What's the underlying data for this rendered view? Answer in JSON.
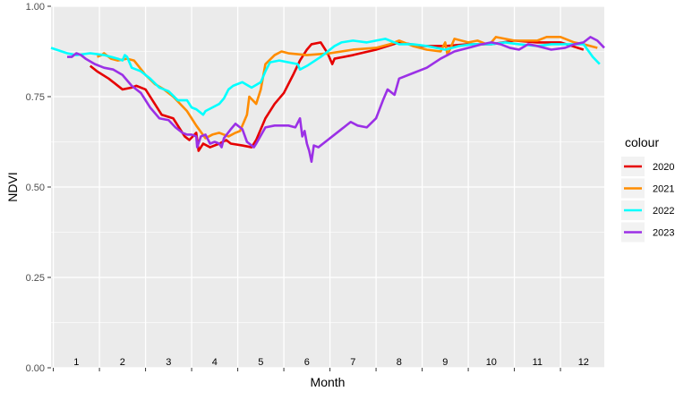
{
  "chart_data": {
    "type": "line",
    "title": "",
    "xlabel": "Month",
    "ylabel": "NDVI",
    "xlim": [
      0.45,
      12.45
    ],
    "ylim": [
      0.0,
      1.0
    ],
    "y_ticks": [
      0.0,
      0.25,
      0.5,
      0.75,
      1.0
    ],
    "y_tick_labels": [
      "0.00",
      "0.25",
      "0.50",
      "0.75",
      "1.00"
    ],
    "month_labels": [
      "1",
      "2",
      "3",
      "4",
      "5",
      "6",
      "7",
      "8",
      "9",
      "10",
      "11",
      "12"
    ],
    "grid": true,
    "legend_title": "colour",
    "legend_position": "right",
    "series": [
      {
        "name": "2020",
        "color": "#e60000",
        "points": [
          [
            1.3,
            0.835
          ],
          [
            1.45,
            0.82
          ],
          [
            1.7,
            0.8
          ],
          [
            2.0,
            0.77
          ],
          [
            2.2,
            0.775
          ],
          [
            2.3,
            0.78
          ],
          [
            2.5,
            0.77
          ],
          [
            2.7,
            0.73
          ],
          [
            2.85,
            0.7
          ],
          [
            3.1,
            0.69
          ],
          [
            3.35,
            0.64
          ],
          [
            3.45,
            0.63
          ],
          [
            3.6,
            0.65
          ],
          [
            3.65,
            0.6
          ],
          [
            3.75,
            0.62
          ],
          [
            3.9,
            0.61
          ],
          [
            4.1,
            0.62
          ],
          [
            4.25,
            0.63
          ],
          [
            4.35,
            0.62
          ],
          [
            4.6,
            0.615
          ],
          [
            4.8,
            0.61
          ],
          [
            4.9,
            0.63
          ],
          [
            5.1,
            0.69
          ],
          [
            5.3,
            0.73
          ],
          [
            5.5,
            0.76
          ],
          [
            5.7,
            0.81
          ],
          [
            5.85,
            0.85
          ],
          [
            6.0,
            0.88
          ],
          [
            6.1,
            0.895
          ],
          [
            6.3,
            0.9
          ],
          [
            6.45,
            0.87
          ],
          [
            6.55,
            0.84
          ],
          [
            6.6,
            0.855
          ],
          [
            7.0,
            0.865
          ],
          [
            7.5,
            0.88
          ],
          [
            8.0,
            0.9
          ],
          [
            8.5,
            0.89
          ],
          [
            9.0,
            0.89
          ],
          [
            9.5,
            0.895
          ],
          [
            10.0,
            0.895
          ],
          [
            10.5,
            0.905
          ],
          [
            11.0,
            0.9
          ],
          [
            11.5,
            0.9
          ],
          [
            12.0,
            0.88
          ]
        ]
      },
      {
        "name": "2021",
        "color": "#ff8c00",
        "points": [
          [
            1.45,
            0.86
          ],
          [
            1.55,
            0.865
          ],
          [
            1.6,
            0.87
          ],
          [
            1.75,
            0.855
          ],
          [
            1.9,
            0.85
          ],
          [
            2.1,
            0.855
          ],
          [
            2.25,
            0.85
          ],
          [
            2.5,
            0.81
          ],
          [
            2.7,
            0.785
          ],
          [
            2.9,
            0.77
          ],
          [
            3.1,
            0.75
          ],
          [
            3.4,
            0.71
          ],
          [
            3.6,
            0.67
          ],
          [
            3.8,
            0.635
          ],
          [
            3.95,
            0.645
          ],
          [
            4.1,
            0.65
          ],
          [
            4.3,
            0.64
          ],
          [
            4.45,
            0.65
          ],
          [
            4.55,
            0.655
          ],
          [
            4.7,
            0.7
          ],
          [
            4.75,
            0.75
          ],
          [
            4.9,
            0.73
          ],
          [
            5.0,
            0.77
          ],
          [
            5.1,
            0.84
          ],
          [
            5.3,
            0.865
          ],
          [
            5.45,
            0.875
          ],
          [
            5.6,
            0.87
          ],
          [
            6.0,
            0.865
          ],
          [
            6.5,
            0.87
          ],
          [
            7.0,
            0.88
          ],
          [
            7.5,
            0.885
          ],
          [
            7.8,
            0.895
          ],
          [
            8.0,
            0.905
          ],
          [
            8.3,
            0.89
          ],
          [
            8.6,
            0.88
          ],
          [
            8.9,
            0.875
          ],
          [
            9.0,
            0.9
          ],
          [
            9.05,
            0.865
          ],
          [
            9.2,
            0.91
          ],
          [
            9.5,
            0.9
          ],
          [
            9.7,
            0.905
          ],
          [
            9.9,
            0.895
          ],
          [
            10.0,
            0.9
          ],
          [
            10.1,
            0.915
          ],
          [
            10.5,
            0.905
          ],
          [
            10.8,
            0.905
          ],
          [
            11.0,
            0.905
          ],
          [
            11.2,
            0.915
          ],
          [
            11.5,
            0.915
          ],
          [
            11.8,
            0.9
          ],
          [
            12.0,
            0.895
          ],
          [
            12.3,
            0.885
          ]
        ]
      },
      {
        "name": "2022",
        "color": "#00ffff",
        "points": [
          [
            0.45,
            0.885
          ],
          [
            0.8,
            0.87
          ],
          [
            1.0,
            0.865
          ],
          [
            1.3,
            0.87
          ],
          [
            1.6,
            0.865
          ],
          [
            1.9,
            0.855
          ],
          [
            2.0,
            0.85
          ],
          [
            2.05,
            0.865
          ],
          [
            2.1,
            0.86
          ],
          [
            2.2,
            0.83
          ],
          [
            2.4,
            0.82
          ],
          [
            2.6,
            0.8
          ],
          [
            2.8,
            0.775
          ],
          [
            3.0,
            0.765
          ],
          [
            3.2,
            0.74
          ],
          [
            3.4,
            0.74
          ],
          [
            3.5,
            0.72
          ],
          [
            3.6,
            0.715
          ],
          [
            3.75,
            0.7
          ],
          [
            3.8,
            0.71
          ],
          [
            3.95,
            0.72
          ],
          [
            4.1,
            0.73
          ],
          [
            4.2,
            0.745
          ],
          [
            4.3,
            0.77
          ],
          [
            4.4,
            0.78
          ],
          [
            4.6,
            0.79
          ],
          [
            4.8,
            0.775
          ],
          [
            5.0,
            0.79
          ],
          [
            5.1,
            0.82
          ],
          [
            5.2,
            0.845
          ],
          [
            5.4,
            0.85
          ],
          [
            5.6,
            0.845
          ],
          [
            5.8,
            0.84
          ],
          [
            5.85,
            0.825
          ],
          [
            6.0,
            0.835
          ],
          [
            6.3,
            0.86
          ],
          [
            6.6,
            0.89
          ],
          [
            6.75,
            0.9
          ],
          [
            7.0,
            0.905
          ],
          [
            7.3,
            0.9
          ],
          [
            7.5,
            0.905
          ],
          [
            7.7,
            0.91
          ],
          [
            8.0,
            0.895
          ],
          [
            8.3,
            0.895
          ],
          [
            8.6,
            0.89
          ],
          [
            9.0,
            0.88
          ],
          [
            9.3,
            0.89
          ],
          [
            9.6,
            0.895
          ],
          [
            10.0,
            0.895
          ],
          [
            10.3,
            0.9
          ],
          [
            10.6,
            0.895
          ],
          [
            11.0,
            0.89
          ],
          [
            11.3,
            0.895
          ],
          [
            11.6,
            0.895
          ],
          [
            12.0,
            0.895
          ],
          [
            12.2,
            0.86
          ],
          [
            12.35,
            0.84
          ]
        ]
      },
      {
        "name": "2023",
        "color": "#9b30e6",
        "points": [
          [
            0.8,
            0.86
          ],
          [
            0.9,
            0.86
          ],
          [
            1.0,
            0.87
          ],
          [
            1.1,
            0.865
          ],
          [
            1.2,
            0.855
          ],
          [
            1.4,
            0.84
          ],
          [
            1.6,
            0.83
          ],
          [
            1.8,
            0.825
          ],
          [
            2.0,
            0.81
          ],
          [
            2.2,
            0.78
          ],
          [
            2.4,
            0.76
          ],
          [
            2.6,
            0.72
          ],
          [
            2.8,
            0.69
          ],
          [
            3.0,
            0.685
          ],
          [
            3.15,
            0.665
          ],
          [
            3.3,
            0.65
          ],
          [
            3.4,
            0.645
          ],
          [
            3.5,
            0.645
          ],
          [
            3.6,
            0.64
          ],
          [
            3.62,
            0.61
          ],
          [
            3.7,
            0.64
          ],
          [
            3.8,
            0.645
          ],
          [
            3.9,
            0.62
          ],
          [
            4.0,
            0.625
          ],
          [
            4.1,
            0.62
          ],
          [
            4.15,
            0.61
          ],
          [
            4.2,
            0.635
          ],
          [
            4.35,
            0.66
          ],
          [
            4.45,
            0.675
          ],
          [
            4.6,
            0.66
          ],
          [
            4.7,
            0.625
          ],
          [
            4.85,
            0.61
          ],
          [
            4.9,
            0.62
          ],
          [
            5.1,
            0.665
          ],
          [
            5.3,
            0.67
          ],
          [
            5.5,
            0.67
          ],
          [
            5.6,
            0.67
          ],
          [
            5.75,
            0.665
          ],
          [
            5.85,
            0.69
          ],
          [
            5.9,
            0.64
          ],
          [
            5.95,
            0.655
          ],
          [
            6.0,
            0.62
          ],
          [
            6.05,
            0.6
          ],
          [
            6.1,
            0.57
          ],
          [
            6.15,
            0.615
          ],
          [
            6.25,
            0.61
          ],
          [
            6.45,
            0.63
          ],
          [
            6.6,
            0.645
          ],
          [
            6.8,
            0.665
          ],
          [
            6.95,
            0.68
          ],
          [
            7.1,
            0.67
          ],
          [
            7.3,
            0.665
          ],
          [
            7.5,
            0.69
          ],
          [
            7.65,
            0.74
          ],
          [
            7.75,
            0.77
          ],
          [
            7.9,
            0.755
          ],
          [
            8.0,
            0.8
          ],
          [
            8.3,
            0.815
          ],
          [
            8.6,
            0.83
          ],
          [
            8.9,
            0.855
          ],
          [
            9.2,
            0.875
          ],
          [
            9.5,
            0.885
          ],
          [
            9.8,
            0.895
          ],
          [
            10.0,
            0.9
          ],
          [
            10.2,
            0.895
          ],
          [
            10.4,
            0.885
          ],
          [
            10.6,
            0.88
          ],
          [
            10.8,
            0.895
          ],
          [
            11.0,
            0.89
          ],
          [
            11.3,
            0.88
          ],
          [
            11.6,
            0.885
          ],
          [
            11.8,
            0.895
          ],
          [
            12.0,
            0.9
          ],
          [
            12.15,
            0.915
          ],
          [
            12.3,
            0.905
          ],
          [
            12.45,
            0.885
          ]
        ]
      }
    ]
  }
}
